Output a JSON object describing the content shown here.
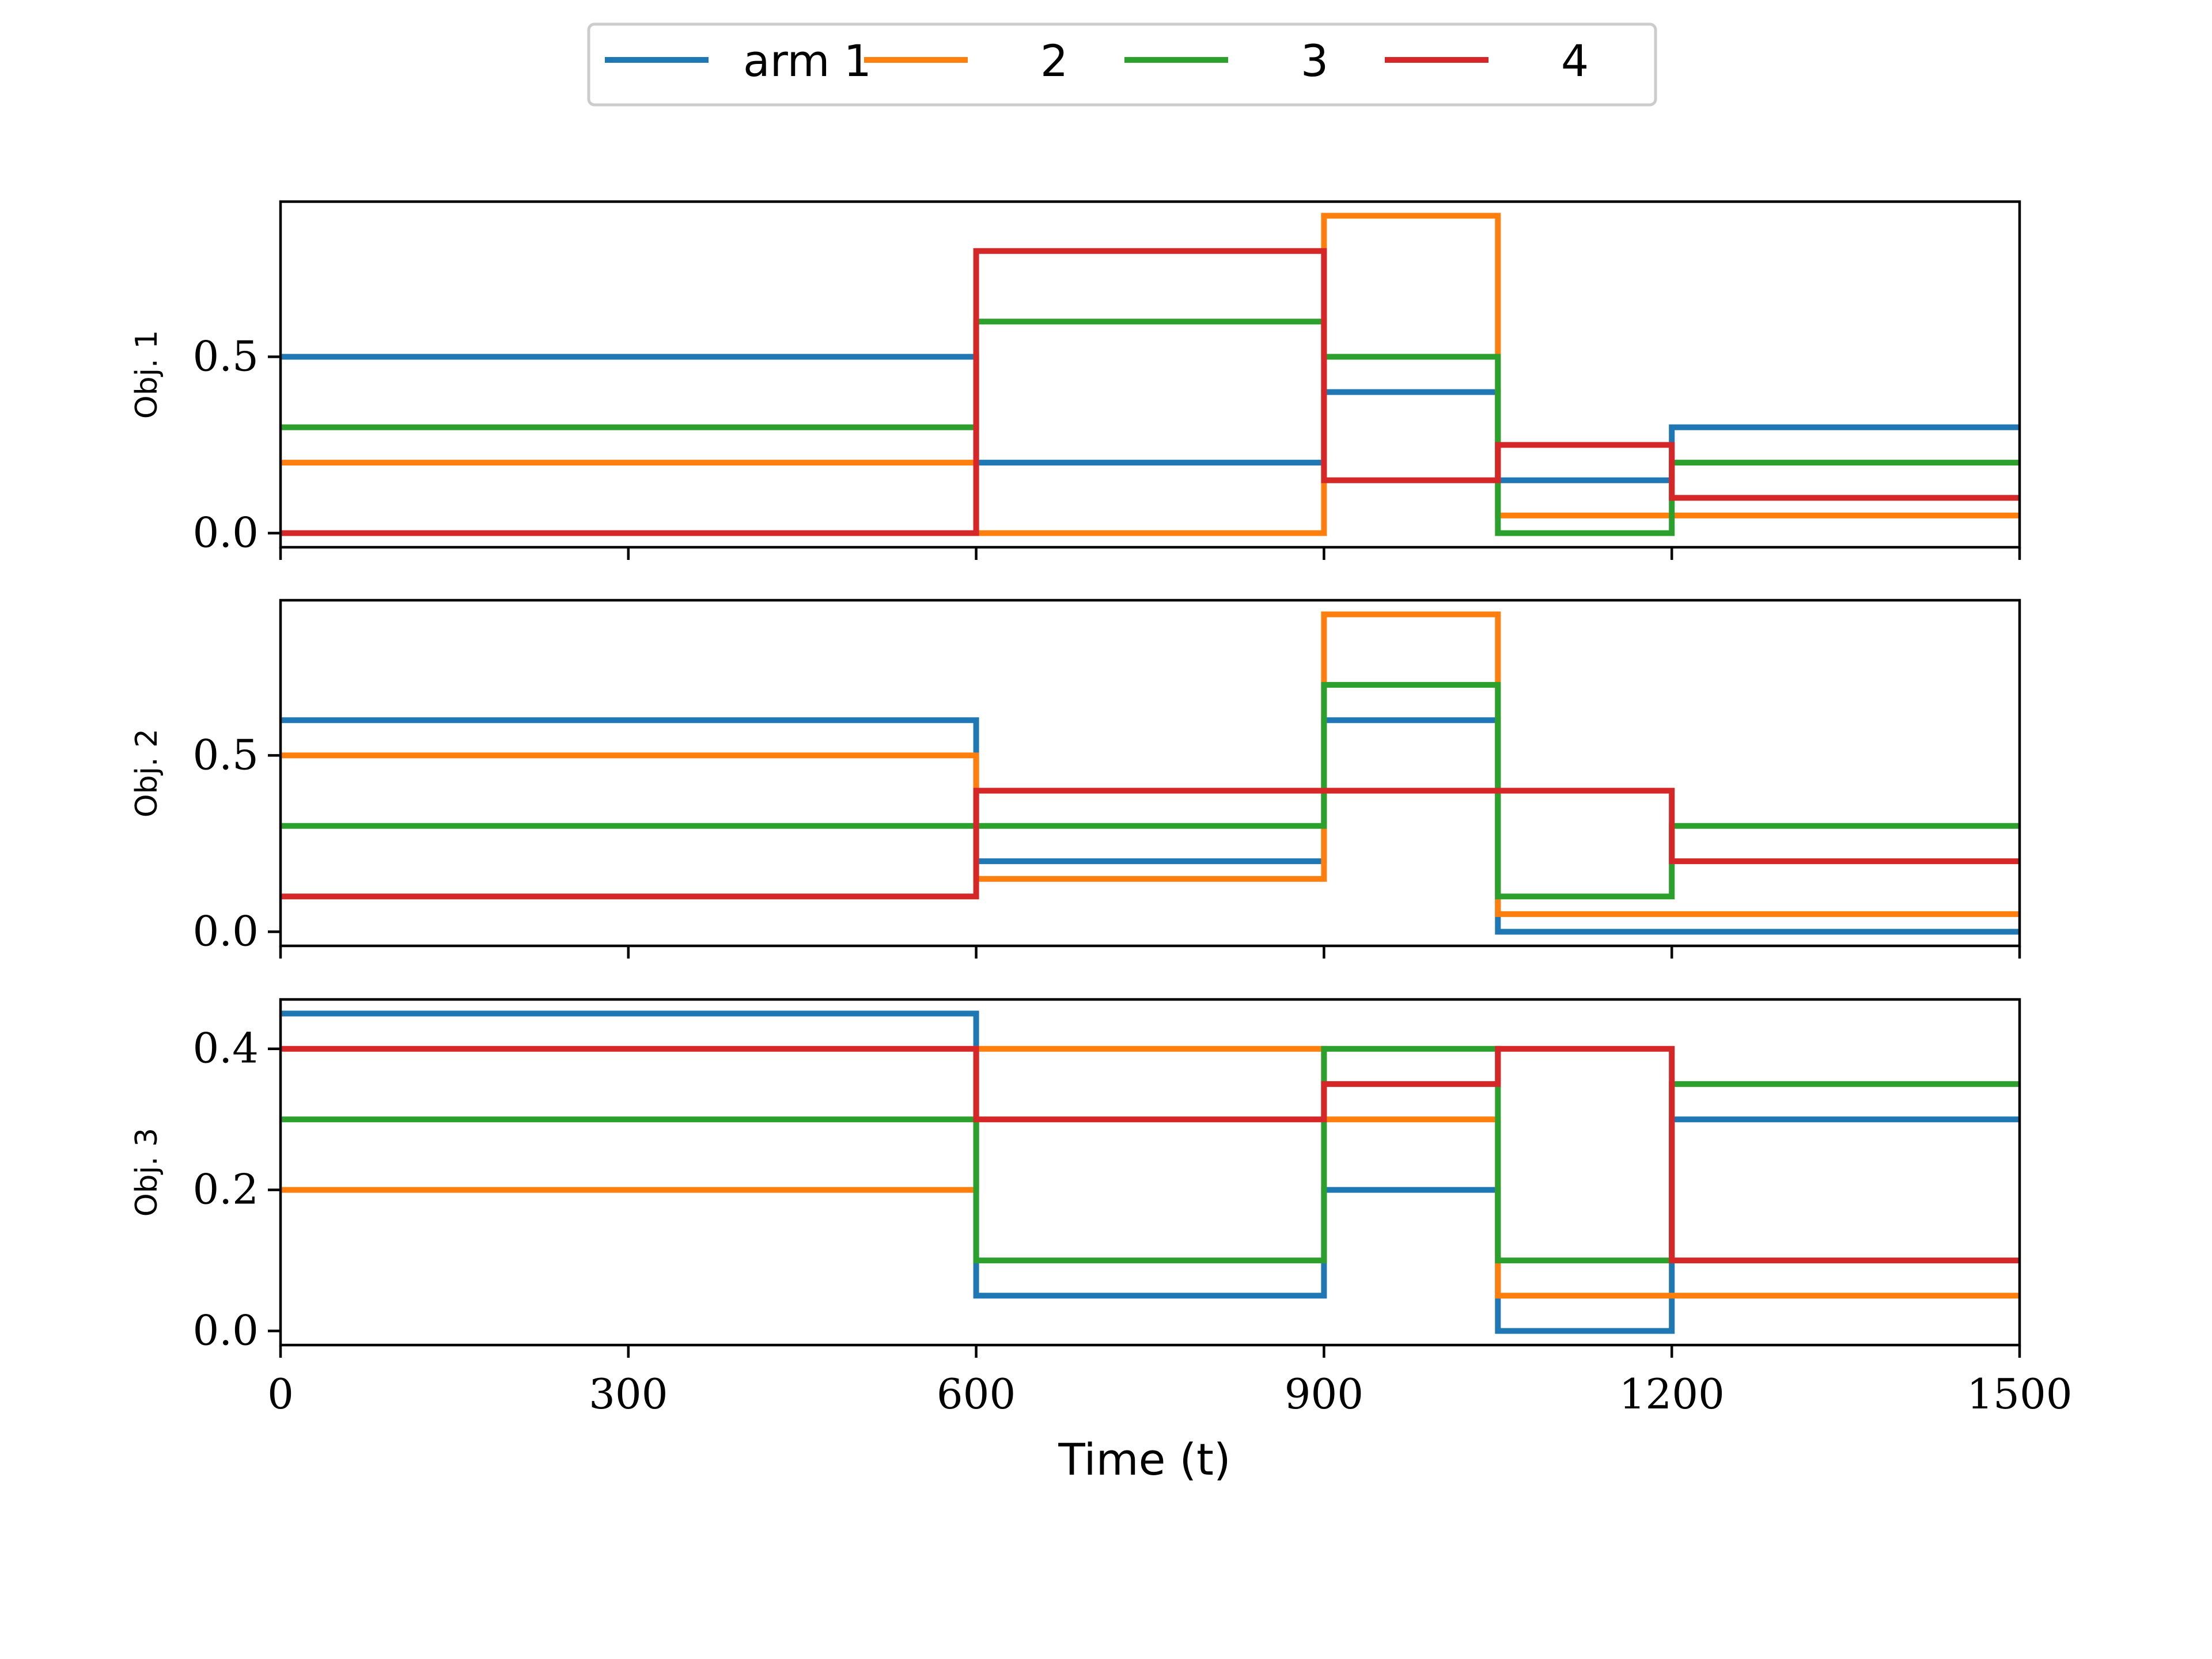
{
  "chart_data": {
    "type": "line",
    "step": true,
    "xlabel": "Time (t)",
    "xlim": [
      0,
      1500
    ],
    "xticks": [
      0,
      300,
      600,
      900,
      1200,
      1500
    ],
    "legend": {
      "placement": "top-center",
      "entries": [
        {
          "label": "arm 1",
          "color": "#1f77b4"
        },
        {
          "label": "2",
          "color": "#ff7f0e"
        },
        {
          "label": "3",
          "color": "#2ca02c"
        },
        {
          "label": "4",
          "color": "#d62728"
        }
      ]
    },
    "breakpoints": [
      0,
      600,
      900,
      1050,
      1200,
      1500
    ],
    "subplots": [
      {
        "ylabel": "Obj. 1",
        "ylim": [
          -0.04,
          0.94
        ],
        "yticks": [
          0.0,
          0.5
        ],
        "ytick_labels": [
          "0.0",
          "0.5"
        ],
        "series": [
          {
            "name": "arm 1",
            "values": [
              0.5,
              0.2,
              0.4,
              0.15,
              0.3
            ]
          },
          {
            "name": "2",
            "values": [
              0.2,
              0.0,
              0.9,
              0.05,
              0.05
            ]
          },
          {
            "name": "3",
            "values": [
              0.3,
              0.6,
              0.5,
              0.0,
              0.2
            ]
          },
          {
            "name": "4",
            "values": [
              0.0,
              0.8,
              0.15,
              0.25,
              0.1
            ]
          }
        ]
      },
      {
        "ylabel": "Obj. 2",
        "ylim": [
          -0.04,
          0.94
        ],
        "yticks": [
          0.0,
          0.5
        ],
        "ytick_labels": [
          "0.0",
          "0.5"
        ],
        "series": [
          {
            "name": "arm 1",
            "values": [
              0.6,
              0.2,
              0.6,
              0.0,
              0.0
            ]
          },
          {
            "name": "2",
            "values": [
              0.5,
              0.15,
              0.9,
              0.05,
              0.05
            ]
          },
          {
            "name": "3",
            "values": [
              0.3,
              0.3,
              0.7,
              0.1,
              0.3
            ]
          },
          {
            "name": "4",
            "values": [
              0.1,
              0.4,
              0.4,
              0.4,
              0.2
            ]
          }
        ]
      },
      {
        "ylabel": "Obj. 3",
        "ylim": [
          -0.02,
          0.47
        ],
        "yticks": [
          0.0,
          0.2,
          0.4
        ],
        "ytick_labels": [
          "0.0",
          "0.2",
          "0.4"
        ],
        "series": [
          {
            "name": "arm 1",
            "values": [
              0.45,
              0.05,
              0.2,
              0.0,
              0.3
            ]
          },
          {
            "name": "2",
            "values": [
              0.2,
              0.4,
              0.3,
              0.05,
              0.05
            ]
          },
          {
            "name": "3",
            "values": [
              0.3,
              0.1,
              0.4,
              0.1,
              0.35
            ]
          },
          {
            "name": "4",
            "values": [
              0.4,
              0.3,
              0.35,
              0.4,
              0.1
            ]
          }
        ]
      }
    ]
  }
}
